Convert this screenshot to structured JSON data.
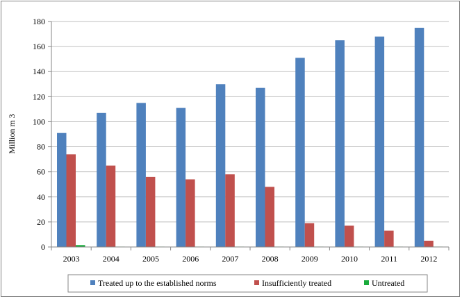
{
  "chart_data": {
    "type": "bar",
    "title": "",
    "xlabel": "",
    "ylabel": "Million m 3",
    "ylim": [
      0,
      180
    ],
    "yticks": [
      0,
      20,
      40,
      60,
      80,
      100,
      120,
      140,
      160,
      180
    ],
    "grid": true,
    "legend_position": "bottom",
    "categories": [
      "2003",
      "2004",
      "2005",
      "2006",
      "2007",
      "2008",
      "2009",
      "2010",
      "2011",
      "2012"
    ],
    "series": [
      {
        "name": "Treated up to the established norms",
        "color": "#4f81bd",
        "values": [
          91,
          107,
          115,
          111,
          130,
          127,
          151,
          165,
          168,
          175
        ]
      },
      {
        "name": "Insufficiently treated",
        "color": "#c0504d",
        "values": [
          74,
          65,
          56,
          54,
          58,
          48,
          19,
          17,
          13,
          5
        ]
      },
      {
        "name": "Untreated",
        "color": "#1aab3c",
        "values": [
          1.5,
          0.3,
          0.3,
          0.3,
          0.3,
          0.3,
          0.3,
          0.3,
          0.3,
          0.3
        ]
      }
    ]
  }
}
